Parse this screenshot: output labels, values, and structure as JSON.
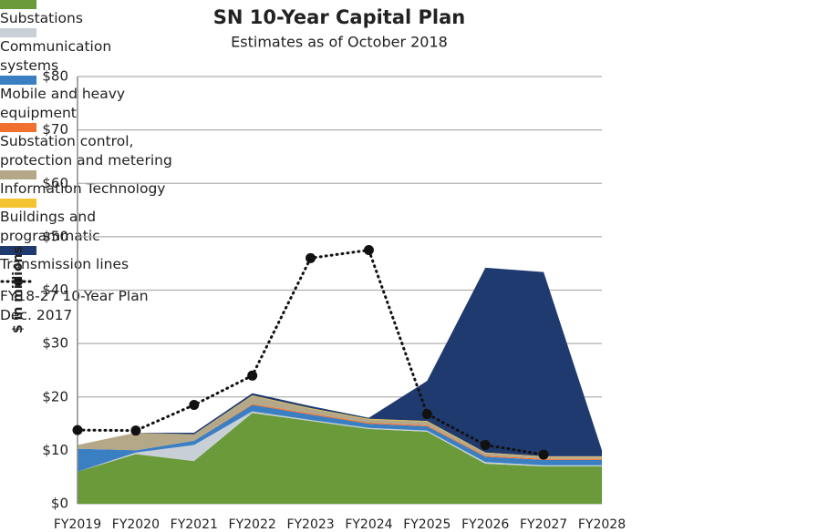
{
  "chart_data": {
    "type": "area",
    "stacked": true,
    "title": "SN 10-Year Capital Plan",
    "subtitle": "Estimates as of October 2018",
    "y_label": "$ in millions",
    "categories": [
      "FY2019",
      "FY2020",
      "FY2021",
      "FY2022",
      "FY2023",
      "FY2024",
      "FY2025",
      "FY2026",
      "FY2027",
      "FY2028"
    ],
    "ylim": [
      0,
      80
    ],
    "yticks": [
      {
        "value": 0,
        "label": "$0"
      },
      {
        "value": 10,
        "label": "$10"
      },
      {
        "value": 20,
        "label": "$20"
      },
      {
        "value": 30,
        "label": "$30"
      },
      {
        "value": 40,
        "label": "$40"
      },
      {
        "value": 50,
        "label": "$50"
      },
      {
        "value": 60,
        "label": "$60"
      },
      {
        "value": 70,
        "label": "$70"
      },
      {
        "value": 80,
        "label": "$80"
      }
    ],
    "grid": true,
    "series": [
      {
        "name": "Substations",
        "color": "#6a9a3a",
        "values": [
          6,
          9.3,
          8,
          17,
          15.5,
          14,
          13.5,
          7.5,
          7,
          7
        ]
      },
      {
        "name": "Communication systems",
        "color": "#c8cfd6",
        "values": [
          0,
          0.3,
          3,
          0.3,
          0.2,
          0.2,
          0.2,
          0.3,
          0.2,
          0.2
        ]
      },
      {
        "name": "Mobile and heavy equipment",
        "color": "#3a7fc1",
        "values": [
          4.3,
          0.4,
          0.8,
          1.2,
          1,
          0.8,
          0.8,
          1,
          1,
          1
        ]
      },
      {
        "name": "Substation control, protection and metering",
        "color": "#f07030",
        "values": [
          0,
          0,
          0,
          0.2,
          0.2,
          0.2,
          0.2,
          0.2,
          0.2,
          0.2
        ]
      },
      {
        "name": "Information Technology",
        "color": "#b5a888",
        "values": [
          0.7,
          3.3,
          1.2,
          1.5,
          0.9,
          0.6,
          0.7,
          0.5,
          0.4,
          0.4
        ]
      },
      {
        "name": "Buildings and programmatic",
        "color": "#f4c430",
        "values": [
          0,
          0,
          0,
          0.1,
          0.1,
          0.1,
          0.1,
          0.1,
          0.1,
          0.1
        ]
      },
      {
        "name": "Transmission lines",
        "color": "#1f3a6e",
        "values": [
          0,
          0,
          0.3,
          0.4,
          0.4,
          0.2,
          7.5,
          34.6,
          34.5,
          1.1
        ]
      },
      {
        "name": "FY18-27 10-Year Plan Dec. 2017",
        "type": "line",
        "color": "#111111",
        "values": [
          13.8,
          13.7,
          18.5,
          24,
          46,
          47.5,
          16.8,
          11,
          9.2,
          null
        ]
      }
    ]
  }
}
